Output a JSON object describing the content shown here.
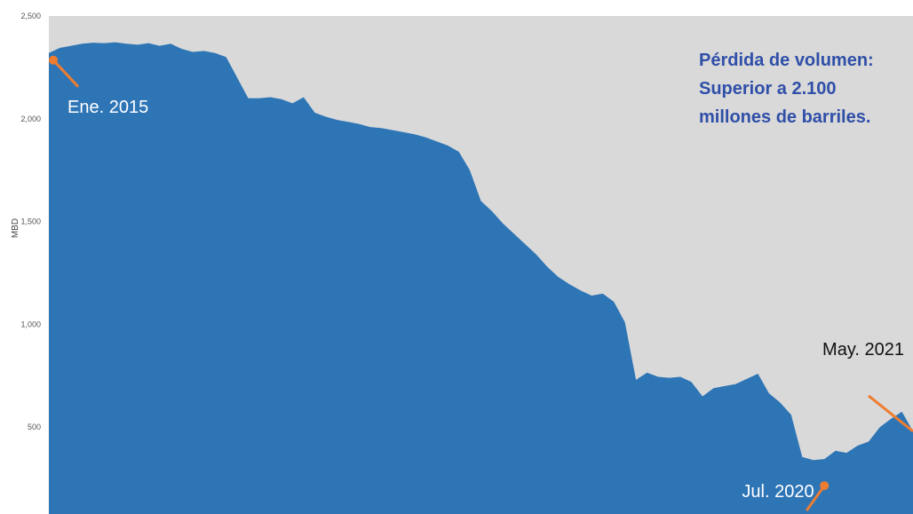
{
  "chart_data": {
    "type": "area",
    "ylabel": "MBD",
    "ylim": [
      0,
      2500
    ],
    "yticks": [
      500,
      1000,
      1500,
      2000,
      2500
    ],
    "ytick_labels": [
      "500",
      "1,000",
      "1,500",
      "2,000",
      "2,500"
    ],
    "grid": false,
    "colors": {
      "area": "#2e75b6",
      "background": "#d9d9d9",
      "marker": "#ed7d31",
      "note": "#2f4fa8"
    },
    "series": [
      {
        "values": [
          2320,
          2345,
          2355,
          2365,
          2370,
          2368,
          2372,
          2365,
          2360,
          2368,
          2355,
          2365,
          2340,
          2325,
          2330,
          2320,
          2300,
          2200,
          2100,
          2100,
          2105,
          2095,
          2075,
          2105,
          2030,
          2010,
          1995,
          1985,
          1975,
          1960,
          1955,
          1945,
          1935,
          1925,
          1910,
          1890,
          1870,
          1840,
          1750,
          1600,
          1550,
          1490,
          1440,
          1390,
          1340,
          1280,
          1230,
          1195,
          1165,
          1140,
          1150,
          1110,
          1010,
          730,
          765,
          745,
          740,
          745,
          720,
          650,
          690,
          700,
          710,
          735,
          760,
          665,
          620,
          560,
          355,
          340,
          345,
          385,
          375,
          410,
          430,
          500,
          540,
          575,
          480
        ],
        "annotations": [
          {
            "index": 0,
            "label": "Ene. 2015",
            "value": 2320
          },
          {
            "index": 70,
            "label": "Jul. 2020",
            "value": 345
          },
          {
            "index": 78,
            "label": "May. 2021",
            "value": 480
          }
        ]
      }
    ],
    "note_lines": [
      "Pérdida de volumen:",
      "Superior a 2.100",
      "millones de barriles."
    ]
  }
}
